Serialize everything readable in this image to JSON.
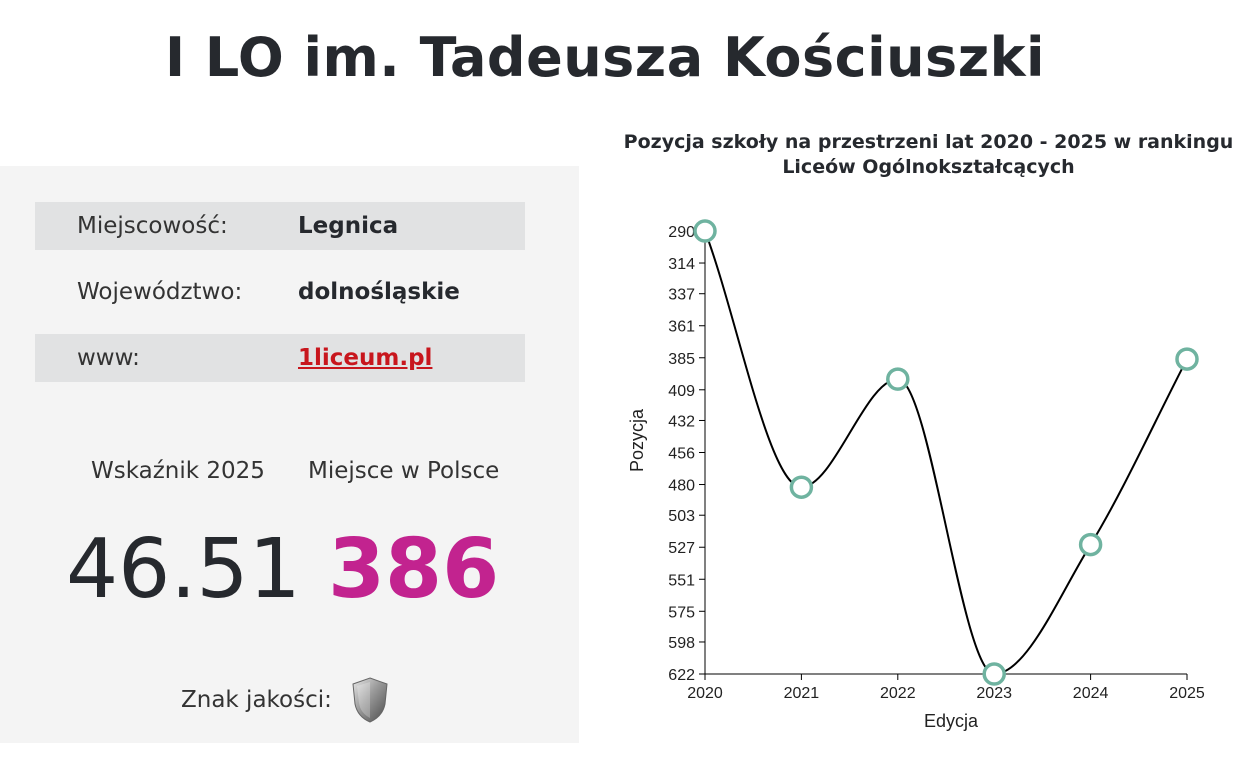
{
  "header": {
    "title": "I LO im. Tadeusza Kościuszki"
  },
  "info": {
    "rows": [
      {
        "label": "Miejscowość:",
        "value": "Legnica"
      },
      {
        "label": "Województwo:",
        "value": "dolnośląskie"
      },
      {
        "label": "www:",
        "value": "1liceum.pl"
      }
    ]
  },
  "stats": {
    "index_label": "Wskaźnik 2025",
    "index_value": "46.51",
    "rank_label": "Miejsce w Polsce",
    "rank_value": "386",
    "rank_color": "#c2238f"
  },
  "quality": {
    "label": "Znak jakości:",
    "icon": "shield-icon"
  },
  "chart_data": {
    "type": "line",
    "title_line1": "Pozycja szkoły na przestrzeni lat 2020 - 2025 w rankingu",
    "title_line2": "Liceów Ogólnokształcących",
    "xlabel": "Edycja",
    "ylabel": "Pozycja",
    "x": [
      "2020",
      "2021",
      "2022",
      "2023",
      "2024",
      "2025"
    ],
    "values": [
      290,
      482,
      401,
      622,
      525,
      386
    ],
    "y_ticks": [
      290,
      314,
      337,
      361,
      385,
      409,
      432,
      456,
      480,
      503,
      527,
      551,
      575,
      598,
      622
    ],
    "ylim": [
      290,
      622
    ],
    "y_inverted": true,
    "line_color": "#000000",
    "marker_color": "#6fb3a0",
    "grid": false
  }
}
